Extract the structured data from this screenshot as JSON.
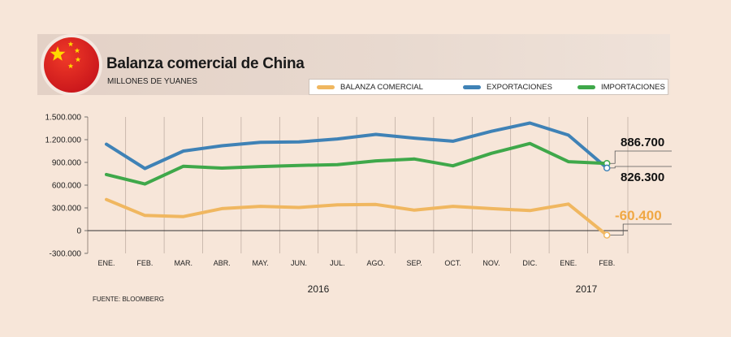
{
  "title": "Balanza comercial de China",
  "subtitle": "MILLONES DE YUANES",
  "source": "FUENTE: BLOOMBERG",
  "legend": [
    {
      "label": "BALANZA COMERCIAL",
      "color": "#f0b760"
    },
    {
      "label": "EXPORTACIONES",
      "color": "#3f82b6"
    },
    {
      "label": "IMPORTACIONES",
      "color": "#3fa84a"
    }
  ],
  "callouts": {
    "exportaciones": "826.300",
    "importaciones": "886.700",
    "balanza": "-60.400"
  },
  "chart_data": {
    "type": "line",
    "categories": [
      "ENE.",
      "FEB.",
      "MAR.",
      "ABR.",
      "MAY.",
      "JUN.",
      "JUL.",
      "AGO.",
      "SEP.",
      "OCT.",
      "NOV.",
      "DIC.",
      "ENE.",
      "FEB."
    ],
    "year_labels": [
      {
        "label": "2016"
      },
      {
        "label": "2017"
      }
    ],
    "y_ticks": [
      "1.500.000",
      "1.200.000",
      "900.000",
      "600.000",
      "300.000",
      "0",
      "-300.000"
    ],
    "ylim": [
      -300000,
      1500000
    ],
    "series": [
      {
        "name": "EXPORTACIONES",
        "color": "#3f82b6",
        "values": [
          1140000,
          820000,
          1050000,
          1120000,
          1165000,
          1170000,
          1210000,
          1270000,
          1220000,
          1180000,
          1310000,
          1420000,
          1260000,
          826300
        ]
      },
      {
        "name": "IMPORTACIONES",
        "color": "#3fa84a",
        "values": [
          740000,
          615000,
          850000,
          825000,
          845000,
          860000,
          870000,
          920000,
          945000,
          855000,
          1020000,
          1150000,
          910000,
          886700
        ]
      },
      {
        "name": "BALANZA COMERCIAL",
        "color": "#f0b760",
        "values": [
          410000,
          200000,
          185000,
          290000,
          320000,
          305000,
          340000,
          345000,
          270000,
          320000,
          290000,
          265000,
          350000,
          -60400
        ]
      }
    ]
  }
}
